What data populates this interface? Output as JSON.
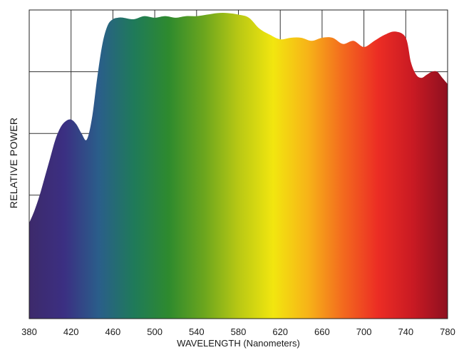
{
  "chart_data": {
    "type": "area",
    "title": "",
    "xlabel": "WAVELENGTH (Nanometers)",
    "ylabel": "RELATIVE POWER",
    "xlim": [
      380,
      780
    ],
    "ylim": [
      0,
      100
    ],
    "x_ticks": [
      380,
      420,
      460,
      500,
      540,
      580,
      620,
      660,
      700,
      740,
      780
    ],
    "x_tick_labels": [
      "380",
      "420",
      "460",
      "500",
      "540",
      "580",
      "620",
      "660",
      "700",
      "740",
      "780"
    ],
    "y_gridlines": [
      20,
      40,
      60,
      80
    ],
    "grid": true,
    "legend": "none",
    "fill": "visible-spectrum gradient",
    "series": [
      {
        "x": [
          380,
          385,
          390,
          395,
          400,
          405,
          410,
          415,
          420,
          425,
          430,
          435,
          440,
          445,
          450,
          455,
          460,
          465,
          470,
          480,
          490,
          500,
          510,
          520,
          530,
          540,
          550,
          560,
          570,
          580,
          590,
          600,
          610,
          620,
          630,
          640,
          650,
          660,
          670,
          680,
          690,
          700,
          710,
          720,
          730,
          740,
          745,
          750,
          755,
          760,
          765,
          770,
          775,
          780
        ],
        "y": [
          31,
          35,
          40,
          46,
          52,
          58,
          62,
          64,
          64.5,
          63,
          60,
          58,
          65,
          78,
          89,
          95,
          97,
          97.5,
          97.5,
          97,
          98,
          97.5,
          98,
          97.5,
          98,
          98,
          98.5,
          99,
          99,
          98.5,
          97.5,
          94,
          92,
          90.5,
          91,
          91,
          90,
          91,
          91,
          89,
          90,
          88,
          90,
          92,
          93,
          91,
          83,
          79,
          78,
          79,
          80,
          80,
          78,
          76
        ]
      }
    ],
    "spectrum_colors": [
      "#3d2a6b",
      "#3b2f82",
      "#2a5e8a",
      "#1f7a5a",
      "#2e8a2e",
      "#6aa51e",
      "#b8c814",
      "#f2e60f",
      "#f7b318",
      "#f36a1e",
      "#ec2d24",
      "#c91a23",
      "#8e1020"
    ]
  }
}
